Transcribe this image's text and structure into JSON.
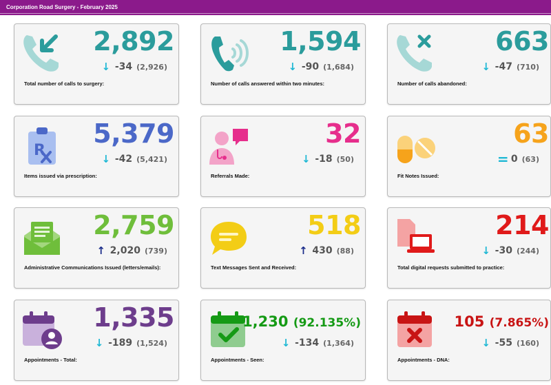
{
  "header": {
    "title": "Corporation Road Surgery - February 2025"
  },
  "cards": [
    {
      "label": "Total number of calls to surgery:",
      "value": "2,892",
      "delta": "-34",
      "previous": "(2,926)",
      "trend": "down",
      "color": "#2b9c9c",
      "icon": "phone-incoming-icon"
    },
    {
      "label": "Number of calls answered within two minutes:",
      "value": "1,594",
      "delta": "-90",
      "previous": "(1,684)",
      "trend": "down",
      "color": "#2b9c9c",
      "icon": "phone-ringing-icon"
    },
    {
      "label": "Number of calls abandoned:",
      "value": "663",
      "delta": "-47",
      "previous": "(710)",
      "trend": "down",
      "color": "#2b9c9c",
      "icon": "phone-missed-icon"
    },
    {
      "label": "Items issued via prescription:",
      "value": "5,379",
      "delta": "-42",
      "previous": "(5,421)",
      "trend": "down",
      "color": "#4b68c8",
      "icon": "prescription-clipboard-icon"
    },
    {
      "label": "Referrals Made:",
      "value": "32",
      "delta": "-18",
      "previous": "(50)",
      "trend": "down",
      "color": "#e62e8c",
      "icon": "doctor-referral-icon"
    },
    {
      "label": "Fit Notes Issued:",
      "value": "63",
      "delta": "0",
      "previous": "(63)",
      "trend": "equal",
      "color": "#f6a31b",
      "icon": "pills-icon"
    },
    {
      "label": "Administrative Communications Issued (letters/emails):",
      "value": "2,759",
      "delta": "2,020",
      "previous": "(739)",
      "trend": "up",
      "color": "#6fbe3b",
      "icon": "envelope-letter-icon"
    },
    {
      "label": "Text Messages Sent and Received:",
      "value": "518",
      "delta": "430",
      "previous": "(88)",
      "trend": "up",
      "color": "#f3cd16",
      "icon": "speech-bubble-icon"
    },
    {
      "label": "Total digital requests submitted to practice:",
      "value": "214",
      "delta": "-30",
      "previous": "(244)",
      "trend": "down",
      "color": "#e01a1a",
      "icon": "digital-request-laptop-icon"
    },
    {
      "label": "Appointments - Total:",
      "value": "1,335",
      "delta": "-189",
      "previous": "(1,524)",
      "trend": "down",
      "color": "#6d3d8c",
      "icon": "calendar-person-icon"
    },
    {
      "label": "Appointments - Seen:",
      "value": "1,230",
      "value_pct": "(92.135%)",
      "delta": "-134",
      "previous": "(1,364)",
      "trend": "down",
      "color": "#159a15",
      "icon": "calendar-check-icon"
    },
    {
      "label": "Appointments - DNA:",
      "value": "105",
      "value_pct": "(7.865%)",
      "delta": "-55",
      "previous": "(160)",
      "trend": "down",
      "color": "#c81414",
      "icon": "calendar-cross-icon"
    }
  ]
}
